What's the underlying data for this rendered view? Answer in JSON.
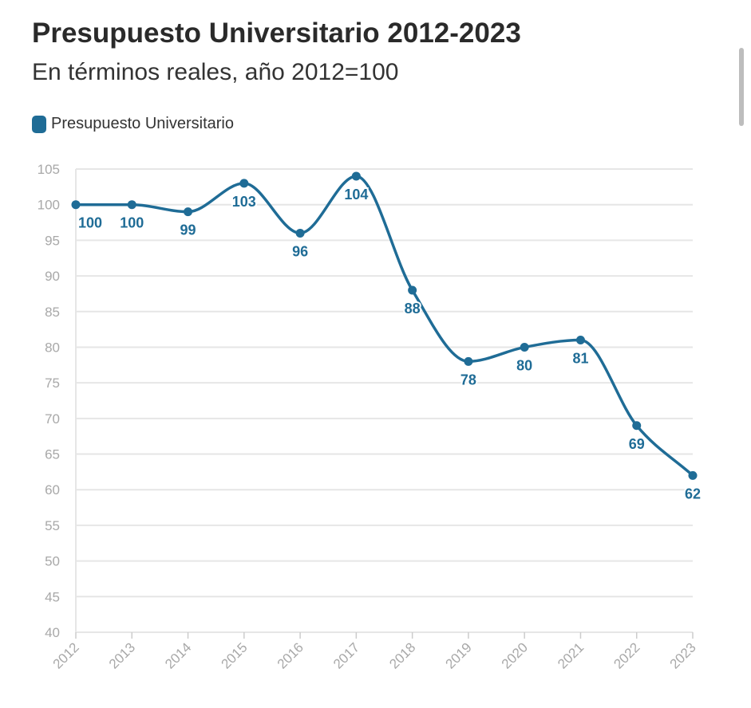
{
  "header": {
    "title": "Presupuesto Universitario 2012-2023",
    "subtitle": "En términos reales, año 2012=100"
  },
  "legend": {
    "label": "Presupuesto Universitario",
    "color": "#1f6c96"
  },
  "colors": {
    "series": "#1f6c96",
    "grid": "#e6e6e6",
    "tick_text": "#a8a8a8"
  },
  "chart_data": {
    "type": "line",
    "title": "Presupuesto Universitario 2012-2023",
    "subtitle": "En términos reales, año 2012=100",
    "xlabel": "",
    "ylabel": "",
    "categories": [
      "2012",
      "2013",
      "2014",
      "2015",
      "2016",
      "2017",
      "2018",
      "2019",
      "2020",
      "2021",
      "2022",
      "2023"
    ],
    "series": [
      {
        "name": "Presupuesto Universitario",
        "values": [
          100,
          100,
          99,
          103,
          96,
          104,
          88,
          78,
          80,
          81,
          69,
          62
        ]
      }
    ],
    "data_labels": [
      "100",
      "100",
      "99",
      "103",
      "96",
      "104",
      "88",
      "78",
      "80",
      "81",
      "69",
      "62"
    ],
    "ylim": [
      40,
      105
    ],
    "yticks": [
      40,
      45,
      50,
      55,
      60,
      65,
      70,
      75,
      80,
      85,
      90,
      95,
      100,
      105
    ],
    "ytick_labels": [
      "40",
      "45",
      "50",
      "55",
      "60",
      "65",
      "70",
      "75",
      "80",
      "85",
      "90",
      "95",
      "100",
      "105"
    ],
    "grid": true,
    "legend_position": "top-left",
    "smooth": true
  }
}
